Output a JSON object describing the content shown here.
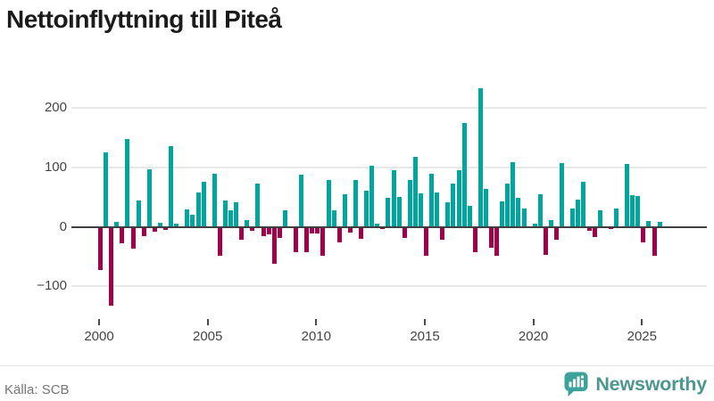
{
  "title": "Nettoinflyttning till Piteå",
  "source": "Källa: SCB",
  "logo": {
    "text": "Newsworthy"
  },
  "colors": {
    "positive": "#00a59d",
    "negative": "#a0004b",
    "grid": "#e8e8e8",
    "zero_axis": "#404040",
    "axis_text": "#444444",
    "tick_mark": "#4a4a4a",
    "title_text": "#1b1b1b",
    "source_text": "#757575",
    "divider": "#e3e3e3",
    "logo_icon": "#3da39a",
    "logo_text": "#4b978f"
  },
  "chart_data": {
    "type": "bar",
    "title": "Nettoinflyttning till Piteå",
    "ylabel": "",
    "xlabel": "",
    "grid": "horizontal",
    "ylim": [
      -150,
      250
    ],
    "y_ticks": [
      -100,
      0,
      100,
      200
    ],
    "y_tick_labels": [
      "−100",
      "0",
      "100",
      "200"
    ],
    "x_tick_labels": [
      "2000",
      "2005",
      "2010",
      "2015",
      "2020",
      "2025"
    ],
    "frequency": "quarterly",
    "quarters": [
      "2000Q1",
      "2000Q2",
      "2000Q3",
      "2000Q4",
      "2001Q1",
      "2001Q2",
      "2001Q3",
      "2001Q4",
      "2002Q1",
      "2002Q2",
      "2002Q3",
      "2002Q4",
      "2003Q1",
      "2003Q2",
      "2003Q3",
      "2003Q4",
      "2004Q1",
      "2004Q2",
      "2004Q3",
      "2004Q4",
      "2005Q1",
      "2005Q2",
      "2005Q3",
      "2005Q4",
      "2006Q1",
      "2006Q2",
      "2006Q3",
      "2006Q4",
      "2007Q1",
      "2007Q2",
      "2007Q3",
      "2007Q4",
      "2008Q1",
      "2008Q2",
      "2008Q3",
      "2008Q4",
      "2009Q1",
      "2009Q2",
      "2009Q3",
      "2009Q4",
      "2010Q1",
      "2010Q2",
      "2010Q3",
      "2010Q4",
      "2011Q1",
      "2011Q2",
      "2011Q3",
      "2011Q4",
      "2012Q1",
      "2012Q2",
      "2012Q3",
      "2012Q4",
      "2013Q1",
      "2013Q2",
      "2013Q3",
      "2013Q4",
      "2014Q1",
      "2014Q2",
      "2014Q3",
      "2014Q4",
      "2015Q1",
      "2015Q2",
      "2015Q3",
      "2015Q4",
      "2016Q1",
      "2016Q2",
      "2016Q3",
      "2016Q4",
      "2017Q1",
      "2017Q2",
      "2017Q3",
      "2017Q4",
      "2018Q1",
      "2018Q2",
      "2018Q3",
      "2018Q4",
      "2019Q1",
      "2019Q2",
      "2019Q3",
      "2019Q4",
      "2020Q1",
      "2020Q2",
      "2020Q3",
      "2020Q4",
      "2021Q1",
      "2021Q2",
      "2021Q3",
      "2021Q4",
      "2022Q1",
      "2022Q2",
      "2022Q3",
      "2022Q4",
      "2023Q1",
      "2023Q2",
      "2023Q3",
      "2023Q4",
      "2024Q1",
      "2024Q2",
      "2024Q3",
      "2024Q4",
      "2025Q1",
      "2025Q2",
      "2025Q3",
      "2025Q4"
    ],
    "values": [
      -73,
      125,
      -132,
      8,
      -27,
      147,
      -36,
      44,
      -16,
      96,
      -8,
      7,
      -5,
      135,
      5,
      0,
      29,
      21,
      58,
      76,
      0,
      89,
      -49,
      44,
      27,
      41,
      -22,
      12,
      -6,
      72,
      -15,
      -13,
      -62,
      -19,
      27,
      0,
      -43,
      88,
      -42,
      -11,
      -11,
      -48,
      79,
      27,
      -26,
      55,
      -10,
      78,
      -20,
      61,
      102,
      6,
      -4,
      48,
      95,
      50,
      -19,
      79,
      117,
      56,
      -49,
      89,
      58,
      -21,
      41,
      73,
      95,
      174,
      35,
      -42,
      233,
      64,
      -35,
      -49,
      42,
      73,
      109,
      49,
      30,
      0,
      5,
      55,
      -47,
      11,
      -21,
      107,
      0,
      31,
      45,
      75,
      -7,
      -17,
      27,
      0,
      -4,
      31,
      0,
      105,
      53,
      52,
      -26,
      10,
      -49,
      9
    ]
  }
}
